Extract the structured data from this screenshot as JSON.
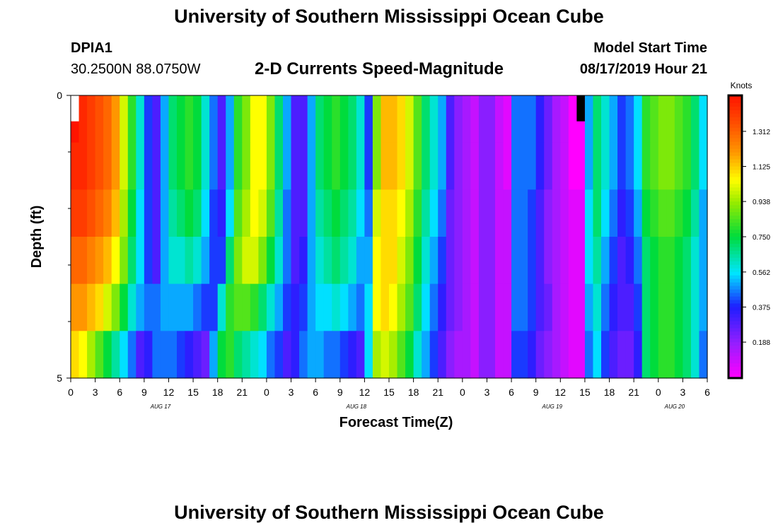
{
  "page": {
    "title": "University of Southern Mississippi Ocean Cube",
    "footer_title": "University of Southern Mississippi Ocean Cube",
    "station_id": "DPIA1",
    "coordinates": "30.2500N 88.0750W",
    "subtitle": "2-D Currents Speed-Magnitude",
    "model_start_label": "Model Start Time",
    "model_start_value": "08/17/2019 Hour 21"
  },
  "chart_data": {
    "type": "heatmap",
    "title": "2-D Currents Speed-Magnitude",
    "xlabel": "Forecast Time(Z)",
    "ylabel": "Depth (ft)",
    "y_ticks": [
      "0",
      "5"
    ],
    "ylim": [
      0,
      5
    ],
    "y_minor_ticks": [
      1,
      2,
      3,
      4
    ],
    "x_tick_labels": [
      "0",
      "3",
      "6",
      "9",
      "12",
      "15",
      "18",
      "21",
      "0",
      "3",
      "6",
      "9",
      "12",
      "15",
      "18",
      "21",
      "0",
      "3",
      "6",
      "9",
      "12",
      "15",
      "18",
      "21",
      "0",
      "3",
      "6"
    ],
    "date_labels": [
      {
        "label": "AUG 17",
        "hour": 11
      },
      {
        "label": "AUG 18",
        "hour": 35
      },
      {
        "label": "AUG 19",
        "hour": 59
      },
      {
        "label": "AUG 20",
        "hour": 74
      }
    ],
    "x_start_hour": 0,
    "x_end_hour": 78,
    "colorbar": {
      "label": "Knots",
      "min": 0,
      "max": 1.5,
      "ticks": [
        "1.312",
        "1.125",
        "0.938",
        "0.750",
        "0.562",
        "0.375",
        "0.188"
      ],
      "tick_values": [
        1.312,
        1.125,
        0.938,
        0.75,
        0.562,
        0.375,
        0.188
      ]
    },
    "depth_layers": [
      [
        1.5,
        1.45,
        1.4,
        1.35,
        1.3,
        1.2,
        1.0,
        0.8,
        0.6,
        0.4,
        0.3,
        0.5,
        0.7,
        0.75,
        0.8,
        0.75,
        0.6,
        0.45,
        0.3,
        0.5,
        0.8,
        0.9,
        1.05,
        1.05,
        0.9,
        0.7,
        0.5,
        0.3,
        0.3,
        0.5,
        0.7,
        0.75,
        0.8,
        0.75,
        0.7,
        0.6,
        0.4,
        0.9,
        1.15,
        1.15,
        1.1,
        1.0,
        0.85,
        0.7,
        0.6,
        0.5,
        0.3,
        0.2,
        0.15,
        0.1,
        0.2,
        0.2,
        0.1,
        0.05,
        0.45,
        0.45,
        0.45,
        0.35,
        0.25,
        0.15,
        0.1,
        0.0,
        0.0,
        0.5,
        0.7,
        0.6,
        0.5,
        0.4,
        0.45,
        0.55,
        0.8,
        0.85,
        0.9,
        0.9,
        0.85,
        0.8,
        0.7,
        0.55
      ],
      [
        1.45,
        1.45,
        1.4,
        1.35,
        1.3,
        1.2,
        1.0,
        0.8,
        0.6,
        0.4,
        0.3,
        0.5,
        0.7,
        0.75,
        0.8,
        0.75,
        0.6,
        0.45,
        0.3,
        0.5,
        0.8,
        0.9,
        1.05,
        1.05,
        0.9,
        0.7,
        0.5,
        0.3,
        0.3,
        0.5,
        0.7,
        0.75,
        0.8,
        0.75,
        0.7,
        0.6,
        0.4,
        0.9,
        1.15,
        1.15,
        1.1,
        1.0,
        0.85,
        0.7,
        0.6,
        0.5,
        0.3,
        0.2,
        0.15,
        0.1,
        0.2,
        0.2,
        0.1,
        0.05,
        0.45,
        0.45,
        0.45,
        0.35,
        0.25,
        0.15,
        0.1,
        0.0,
        0.0,
        0.5,
        0.7,
        0.6,
        0.5,
        0.4,
        0.45,
        0.55,
        0.8,
        0.85,
        0.9,
        0.9,
        0.85,
        0.8,
        0.7,
        0.55
      ],
      [
        1.4,
        1.4,
        1.35,
        1.3,
        1.25,
        1.15,
        0.95,
        0.75,
        0.55,
        0.4,
        0.3,
        0.5,
        0.65,
        0.7,
        0.75,
        0.7,
        0.55,
        0.4,
        0.35,
        0.55,
        0.85,
        0.95,
        1.05,
        1.0,
        0.85,
        0.65,
        0.45,
        0.3,
        0.3,
        0.5,
        0.65,
        0.7,
        0.75,
        0.7,
        0.65,
        0.55,
        0.45,
        1.0,
        1.1,
        1.1,
        1.05,
        0.95,
        0.8,
        0.65,
        0.55,
        0.45,
        0.25,
        0.2,
        0.15,
        0.1,
        0.2,
        0.2,
        0.1,
        0.1,
        0.45,
        0.45,
        0.4,
        0.3,
        0.2,
        0.15,
        0.1,
        0.05,
        0.05,
        0.55,
        0.7,
        0.55,
        0.45,
        0.35,
        0.4,
        0.5,
        0.75,
        0.8,
        0.85,
        0.85,
        0.8,
        0.75,
        0.65,
        0.5
      ],
      [
        1.3,
        1.3,
        1.25,
        1.2,
        1.15,
        1.05,
        0.9,
        0.7,
        0.55,
        0.4,
        0.3,
        0.5,
        0.6,
        0.6,
        0.65,
        0.6,
        0.5,
        0.4,
        0.4,
        0.7,
        0.9,
        1.0,
        1.0,
        0.9,
        0.75,
        0.6,
        0.45,
        0.3,
        0.35,
        0.5,
        0.6,
        0.65,
        0.7,
        0.65,
        0.6,
        0.5,
        0.5,
        1.05,
        1.1,
        1.1,
        1.0,
        0.9,
        0.75,
        0.6,
        0.5,
        0.4,
        0.25,
        0.2,
        0.15,
        0.1,
        0.2,
        0.2,
        0.1,
        0.1,
        0.45,
        0.45,
        0.4,
        0.3,
        0.2,
        0.15,
        0.1,
        0.05,
        0.05,
        0.55,
        0.65,
        0.5,
        0.4,
        0.3,
        0.35,
        0.45,
        0.7,
        0.75,
        0.8,
        0.8,
        0.75,
        0.7,
        0.6,
        0.5
      ],
      [
        1.2,
        1.2,
        1.15,
        1.1,
        1.0,
        0.9,
        0.75,
        0.6,
        0.5,
        0.45,
        0.45,
        0.5,
        0.5,
        0.5,
        0.5,
        0.45,
        0.4,
        0.4,
        0.6,
        0.8,
        0.85,
        0.85,
        0.8,
        0.7,
        0.6,
        0.5,
        0.4,
        0.35,
        0.4,
        0.5,
        0.55,
        0.55,
        0.6,
        0.55,
        0.5,
        0.45,
        0.55,
        1.05,
        1.1,
        1.05,
        0.95,
        0.85,
        0.7,
        0.55,
        0.45,
        0.35,
        0.25,
        0.2,
        0.15,
        0.1,
        0.2,
        0.2,
        0.1,
        0.1,
        0.45,
        0.45,
        0.4,
        0.3,
        0.25,
        0.15,
        0.1,
        0.05,
        0.05,
        0.5,
        0.6,
        0.45,
        0.35,
        0.3,
        0.3,
        0.4,
        0.7,
        0.75,
        0.8,
        0.8,
        0.75,
        0.7,
        0.6,
        0.5
      ],
      [
        1.1,
        1.05,
        0.95,
        0.85,
        0.75,
        0.65,
        0.55,
        0.45,
        0.3,
        0.35,
        0.45,
        0.45,
        0.45,
        0.4,
        0.35,
        0.3,
        0.25,
        0.5,
        0.75,
        0.8,
        0.7,
        0.65,
        0.6,
        0.55,
        0.45,
        0.4,
        0.3,
        0.35,
        0.45,
        0.5,
        0.5,
        0.45,
        0.45,
        0.4,
        0.35,
        0.3,
        0.55,
        0.95,
        1.0,
        0.95,
        0.85,
        0.75,
        0.6,
        0.5,
        0.4,
        0.3,
        0.2,
        0.15,
        0.15,
        0.1,
        0.2,
        0.2,
        0.1,
        0.1,
        0.4,
        0.4,
        0.35,
        0.25,
        0.2,
        0.15,
        0.1,
        0.05,
        0.05,
        0.45,
        0.55,
        0.4,
        0.3,
        0.25,
        0.25,
        0.35,
        0.7,
        0.75,
        0.8,
        0.8,
        0.75,
        0.7,
        0.6,
        0.45
      ]
    ],
    "missing_cells": [
      {
        "hour": 0.5,
        "layer": 0,
        "color": "#ffffff"
      },
      {
        "hour": 62.5,
        "layer": 0,
        "color": "#000000"
      }
    ]
  }
}
